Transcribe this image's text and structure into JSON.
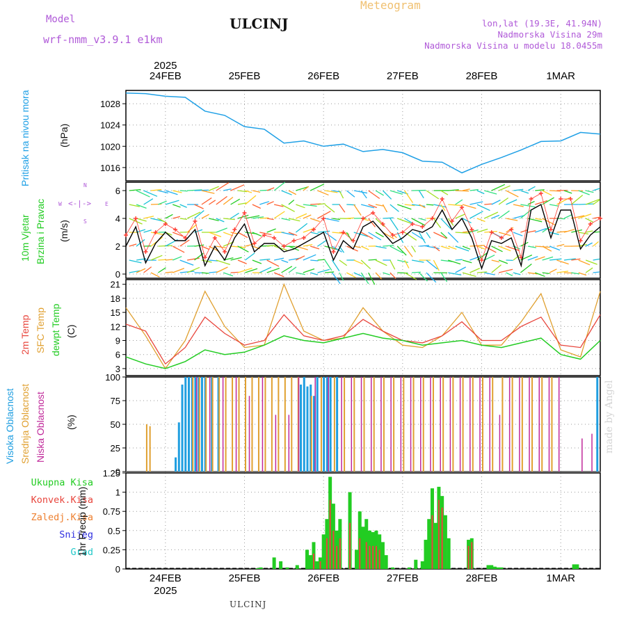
{
  "header": {
    "subtitle": "Meteogram",
    "title": "ULCINJ",
    "model_label": "Model",
    "model_name": "wrf-nmm_v3.9.1 e1km",
    "location_line1": "lon,lat (19.3E, 41.94N)",
    "location_line2": "Nadmorska Visina 29m",
    "location_line3": "Nadmorska Visina u modelu 18.0455m"
  },
  "footer": {
    "station": "ULCINJ",
    "credit": "made by Angel"
  },
  "time_axis": {
    "year": "2025",
    "dates": [
      "24FEB",
      "25FEB",
      "26FEB",
      "27FEB",
      "28FEB",
      "1MAR"
    ]
  },
  "wind_compass": {
    "n": "N",
    "s": "S",
    "w": "W",
    "e": "E"
  },
  "panel_labels": {
    "pressure": {
      "name": "Pritisak na nivou mora",
      "unit": "(hPa)"
    },
    "wind": {
      "name1": "10m Vjetar",
      "name2": "Brzina i Pravac",
      "unit": "(m/s)"
    },
    "temp": {
      "t2m": "2m Temp",
      "sfc": "SFC Temp",
      "dew": "dewpt Temp",
      "unit": "(C)"
    },
    "cloud": {
      "high": "Visoka Oblacnost",
      "mid": "Srednja Oblacnost",
      "low": "Niska Oblacnost",
      "unit": "(%)"
    },
    "precip": {
      "total": "Ukupna Kisa",
      "conv": "Konvek.Kisa",
      "frz": "Zaledj.Kisa",
      "snow": "Snijeg",
      "grad": "Grad",
      "unit": "1hr Precip (mm)"
    }
  },
  "colors": {
    "pressure": "#1fa0e6",
    "wind_speed": "#000000",
    "wind_gust": "#ff3b30",
    "t2m": "#e8453c",
    "sfc": "#e0a030",
    "dew": "#22cc22",
    "cloud_high": "#1f9ee0",
    "cloud_mid": "#e0a030",
    "cloud_low": "#c0289a",
    "precip_total": "#22cc22",
    "precip_conv": "#e8453c",
    "label_purple": "#b05ad8",
    "label_green": "#22cc22",
    "label_red": "#e8453c",
    "label_orange": "#ee8030",
    "label_blue": "#3030e0",
    "label_cyan": "#20c8c8"
  },
  "chart_data": [
    {
      "type": "line",
      "title": "Pritisak na nivou mora",
      "ylabel": "(hPa)",
      "ylim": [
        1013.5,
        1030.5
      ],
      "yticks": [
        1016,
        1020,
        1024,
        1028
      ],
      "xlim": [
        0,
        144
      ],
      "grid": true,
      "series": [
        {
          "name": "Pritisak na nivou mora",
          "x": [
            0,
            6,
            12,
            18,
            24,
            30,
            36,
            42,
            48,
            54,
            60,
            66,
            72,
            78,
            84,
            90,
            96,
            102,
            108,
            114,
            120,
            126,
            132,
            138,
            144
          ],
          "values": [
            1030,
            1029.9,
            1029.4,
            1029.2,
            1026.6,
            1025.8,
            1023.7,
            1023.2,
            1020.6,
            1021,
            1020,
            1020.4,
            1019,
            1019.4,
            1018.8,
            1017.2,
            1017,
            1015,
            1016.6,
            1017.9,
            1019.3,
            1020.9,
            1021,
            1022.6,
            1022.3
          ]
        }
      ]
    },
    {
      "type": "line",
      "title": "10m Vjetar Brzina i Pravac",
      "ylabel": "(m/s)",
      "ylim": [
        -0.3,
        6.6
      ],
      "yticks": [
        0,
        2,
        4,
        6
      ],
      "xlim": [
        0,
        144
      ],
      "grid": true,
      "series": [
        {
          "name": "wind speed",
          "x": [
            0,
            3,
            6,
            9,
            12,
            15,
            18,
            21,
            24,
            27,
            30,
            33,
            36,
            39,
            42,
            45,
            48,
            51,
            54,
            57,
            60,
            63,
            66,
            69,
            72,
            75,
            78,
            81,
            84,
            87,
            90,
            93,
            96,
            99,
            102,
            105,
            108,
            111,
            114,
            117,
            120,
            123,
            126,
            129,
            132,
            135,
            138,
            141,
            144
          ],
          "values": [
            2.0,
            3.4,
            0.8,
            2.2,
            3.0,
            2.4,
            2.4,
            3.2,
            0.6,
            2.0,
            1.0,
            2.6,
            3.6,
            1.6,
            2.2,
            2.2,
            1.6,
            1.8,
            2.2,
            2.6,
            3.0,
            1.0,
            2.4,
            1.8,
            3.4,
            3.8,
            3.0,
            2.2,
            2.6,
            3.2,
            3.0,
            3.4,
            4.6,
            3.2,
            4.0,
            2.6,
            0.4,
            2.4,
            2.2,
            2.6,
            0.6,
            4.6,
            5.0,
            2.6,
            4.6,
            4.6,
            1.8,
            2.8,
            3.4
          ]
        },
        {
          "name": "wind gust",
          "x": [
            0,
            3,
            6,
            9,
            12,
            15,
            18,
            21,
            24,
            27,
            30,
            33,
            36,
            39,
            42,
            45,
            48,
            51,
            54,
            57,
            60,
            63,
            66,
            69,
            72,
            75,
            78,
            81,
            84,
            87,
            90,
            93,
            96,
            99,
            102,
            105,
            108,
            111,
            114,
            117,
            120,
            123,
            126,
            129,
            132,
            135,
            138,
            141,
            144
          ],
          "values": [
            2.8,
            4.0,
            1.6,
            3.0,
            3.6,
            3.2,
            2.6,
            3.8,
            1.2,
            2.6,
            1.6,
            3.2,
            4.4,
            2.2,
            2.8,
            2.6,
            2.0,
            2.4,
            2.6,
            3.2,
            4.0,
            1.6,
            3.0,
            2.4,
            4.0,
            4.4,
            3.6,
            2.8,
            3.0,
            3.6,
            3.4,
            4.0,
            5.4,
            3.8,
            4.8,
            3.2,
            1.0,
            3.0,
            2.6,
            3.2,
            1.2,
            5.4,
            5.8,
            3.2,
            5.4,
            5.4,
            2.4,
            3.6,
            4.0
          ]
        }
      ]
    },
    {
      "type": "line",
      "title": "2m Temp / SFC Temp / dewpt Temp",
      "ylabel": "(C)",
      "ylim": [
        1.5,
        22
      ],
      "yticks": [
        3,
        6,
        9,
        12,
        15,
        18,
        21
      ],
      "xlim": [
        0,
        144
      ],
      "grid": true,
      "series": [
        {
          "name": "2m Temp",
          "x": [
            0,
            6,
            12,
            18,
            24,
            30,
            36,
            42,
            48,
            54,
            60,
            66,
            72,
            78,
            84,
            90,
            96,
            102,
            108,
            114,
            120,
            126,
            132,
            138,
            144
          ],
          "values": [
            12.5,
            11,
            4,
            7.5,
            14,
            10.5,
            8,
            9,
            14.5,
            10,
            9,
            10,
            13.5,
            11,
            9,
            8.5,
            10,
            13,
            9,
            9,
            12,
            14,
            8,
            7.5,
            14.5
          ]
        },
        {
          "name": "SFC Temp",
          "x": [
            0,
            6,
            12,
            18,
            24,
            30,
            36,
            42,
            48,
            54,
            60,
            66,
            72,
            78,
            84,
            90,
            96,
            102,
            108,
            114,
            120,
            126,
            132,
            138,
            144
          ],
          "values": [
            16,
            10,
            3,
            9,
            19.5,
            12,
            7.5,
            8,
            21,
            11,
            9,
            9.5,
            16,
            11,
            8,
            7.5,
            10,
            15,
            8,
            8,
            13,
            19,
            7,
            5.5,
            19.5
          ]
        },
        {
          "name": "dewpt Temp",
          "x": [
            0,
            6,
            12,
            18,
            24,
            30,
            36,
            42,
            48,
            54,
            60,
            66,
            72,
            78,
            84,
            90,
            96,
            102,
            108,
            114,
            120,
            126,
            132,
            138,
            144
          ],
          "values": [
            5.5,
            4,
            3,
            4.5,
            7,
            6,
            6.5,
            8,
            10,
            9,
            8.5,
            9.5,
            10.5,
            9.5,
            9,
            8,
            8.5,
            9,
            8,
            7.5,
            8.5,
            9.5,
            6,
            5,
            9
          ]
        }
      ]
    },
    {
      "type": "bar",
      "title": "Visoka / Srednja / Niska Oblacnost",
      "ylabel": "(%)",
      "ylim": [
        0,
        100
      ],
      "yticks": [
        0,
        25,
        50,
        75,
        100
      ],
      "xlim": [
        0,
        144
      ],
      "grid": true,
      "series": [
        {
          "name": "Visoka Oblacnost",
          "x": [
            15,
            16,
            17,
            18,
            19,
            20,
            21,
            22,
            23,
            24,
            26,
            28,
            53,
            54,
            55,
            56,
            57,
            58,
            60,
            61,
            62,
            64,
            143
          ],
          "values": [
            15,
            52,
            92,
            100,
            100,
            100,
            100,
            100,
            100,
            100,
            100,
            100,
            92,
            100,
            90,
            92,
            80,
            100,
            100,
            100,
            100,
            100,
            100
          ]
        },
        {
          "name": "Srednja Oblacnost",
          "x": [
            6,
            7,
            20,
            22,
            24,
            26,
            28,
            30,
            32,
            34,
            36,
            38,
            40,
            42,
            44,
            46,
            48,
            50,
            52,
            56,
            59,
            63,
            66,
            69,
            72,
            75,
            78,
            81,
            84,
            87,
            90,
            93,
            96,
            99,
            102,
            105,
            108,
            111,
            114,
            117,
            120,
            123,
            126,
            129
          ],
          "values": [
            50,
            48,
            100,
            100,
            100,
            100,
            100,
            100,
            100,
            100,
            100,
            100,
            100,
            100,
            100,
            100,
            100,
            100,
            100,
            80,
            100,
            100,
            100,
            100,
            100,
            100,
            100,
            100,
            100,
            100,
            100,
            100,
            100,
            100,
            100,
            100,
            100,
            100,
            100,
            100,
            100,
            100,
            100,
            100
          ]
        },
        {
          "name": "Niska Oblacnost",
          "x": [
            21,
            25,
            29,
            33,
            37,
            41,
            45,
            49,
            52,
            57,
            61,
            65,
            68,
            71,
            74,
            77,
            80,
            83,
            86,
            89,
            92,
            95,
            98,
            101,
            104,
            107,
            110,
            113,
            116,
            119,
            122,
            125,
            128,
            131,
            134,
            138,
            141
          ],
          "values": [
            100,
            100,
            100,
            100,
            80,
            100,
            60,
            60,
            100,
            100,
            100,
            100,
            100,
            100,
            100,
            100,
            100,
            100,
            100,
            100,
            100,
            100,
            100,
            100,
            100,
            100,
            100,
            60,
            100,
            100,
            100,
            100,
            100,
            100,
            0,
            35,
            40
          ]
        }
      ]
    },
    {
      "type": "bar",
      "title": "1hr Precip",
      "ylabel": "1hr Precip (mm)",
      "ylim": [
        0,
        1.25
      ],
      "yticks": [
        0,
        0.25,
        0.5,
        0.75,
        1,
        1.25
      ],
      "xlim": [
        0,
        144
      ],
      "grid": true,
      "series": [
        {
          "name": "Ukupna Kisa",
          "x": [
            40,
            41,
            45,
            47,
            49,
            52,
            55,
            56,
            57,
            58,
            59,
            60,
            61,
            62,
            63,
            64,
            65,
            68,
            70,
            71,
            72,
            73,
            74,
            75,
            76,
            77,
            78,
            79,
            81,
            86,
            88,
            90,
            91,
            92,
            93,
            94,
            95,
            96,
            97,
            98,
            104,
            105,
            110,
            111,
            112,
            113,
            114,
            136,
            137
          ],
          "values": [
            0.01,
            0.02,
            0.15,
            0.1,
            0.02,
            0.05,
            0.25,
            0.18,
            0.35,
            0.1,
            0.15,
            0.45,
            0.65,
            1.2,
            0.85,
            0.5,
            0.65,
            1.0,
            0.25,
            0.75,
            0.55,
            0.65,
            0.5,
            0.48,
            0.5,
            0.45,
            0.35,
            0.18,
            0.02,
            0.02,
            0.12,
            0.1,
            0.38,
            0.65,
            1.05,
            0.6,
            1.07,
            0.95,
            0.7,
            0.4,
            0.38,
            0.4,
            0.05,
            0.05,
            0.03,
            0.02,
            0.02,
            0.06,
            0.06
          ]
        },
        {
          "name": "Konvek.Kisa",
          "x": [
            57,
            59,
            61,
            62,
            63,
            64,
            65,
            68,
            71,
            73,
            74,
            75,
            76,
            77,
            93,
            95,
            96,
            104,
            105
          ],
          "values": [
            0.2,
            0.1,
            0.4,
            0.9,
            0.5,
            0.3,
            0.4,
            0.6,
            0.4,
            0.35,
            0.3,
            0.3,
            0.3,
            0.25,
            0.7,
            0.9,
            0.8,
            0.3,
            0.35
          ]
        }
      ]
    }
  ]
}
